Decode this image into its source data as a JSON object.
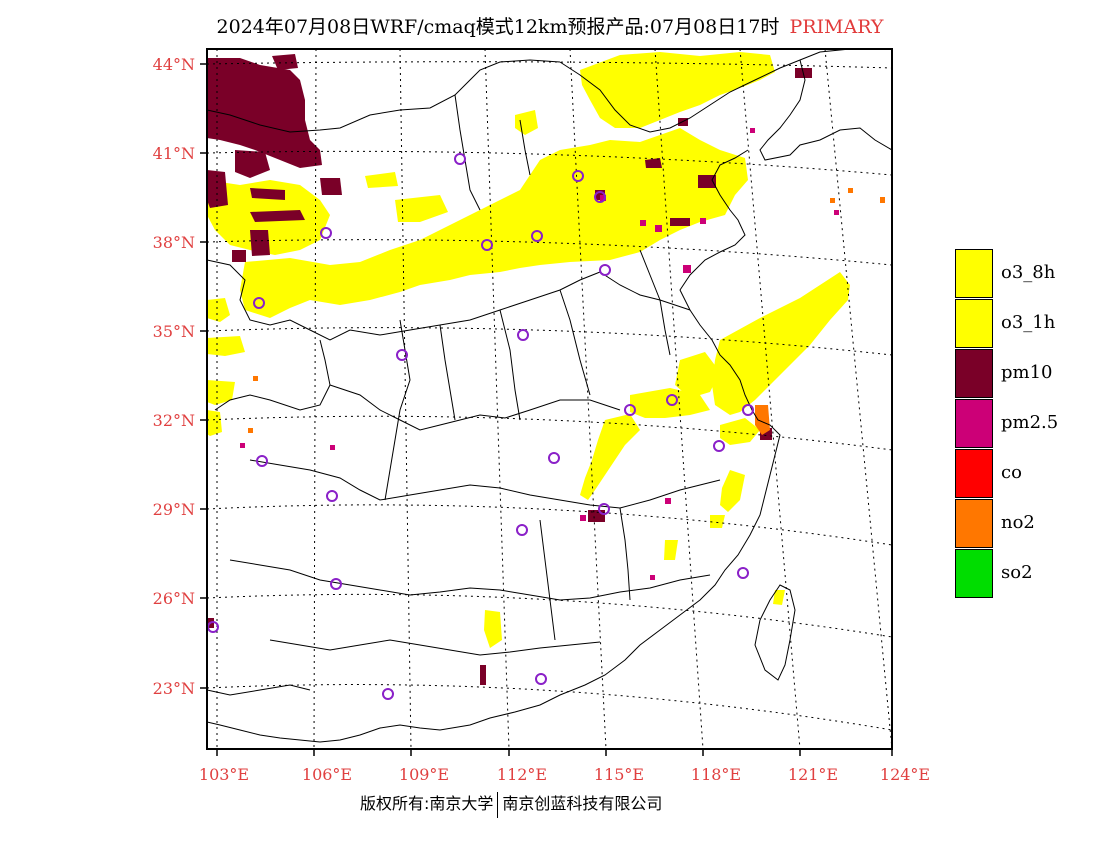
{
  "title": {
    "main": "2024年07月08日WRF/cmaq模式12km预报产品:07月08日17时",
    "tag": "PRIMARY"
  },
  "map": {
    "lat_labels": [
      "44°N",
      "41°N",
      "38°N",
      "35°N",
      "32°N",
      "29°N",
      "26°N",
      "23°N"
    ],
    "lon_labels": [
      "103°E",
      "106°E",
      "109°E",
      "112°E",
      "115°E",
      "118°E",
      "121°E",
      "124°E"
    ],
    "grid_lines": "dotted",
    "pollutant_colors": {
      "o3_8h": "#ffff00",
      "o3_1h": "#ffff00",
      "pm10": "#7a0028",
      "pm2.5": "#cc0077",
      "co": "#ff0000",
      "no2": "#ff7700",
      "so2": "#00dd00"
    },
    "station_marker_color": "#8a20c8"
  },
  "legend": [
    {
      "label": "o3_8h",
      "color": "#ffff00"
    },
    {
      "label": "o3_1h",
      "color": "#ffff00"
    },
    {
      "label": "pm10",
      "color": "#7a0028"
    },
    {
      "label": "pm2.5",
      "color": "#cc0077"
    },
    {
      "label": "co",
      "color": "#ff0000"
    },
    {
      "label": "no2",
      "color": "#ff7700"
    },
    {
      "label": "so2",
      "color": "#00dd00"
    }
  ],
  "copyright": {
    "left": "版权所有:南京大学",
    "right": "南京创蓝科技有限公司"
  }
}
